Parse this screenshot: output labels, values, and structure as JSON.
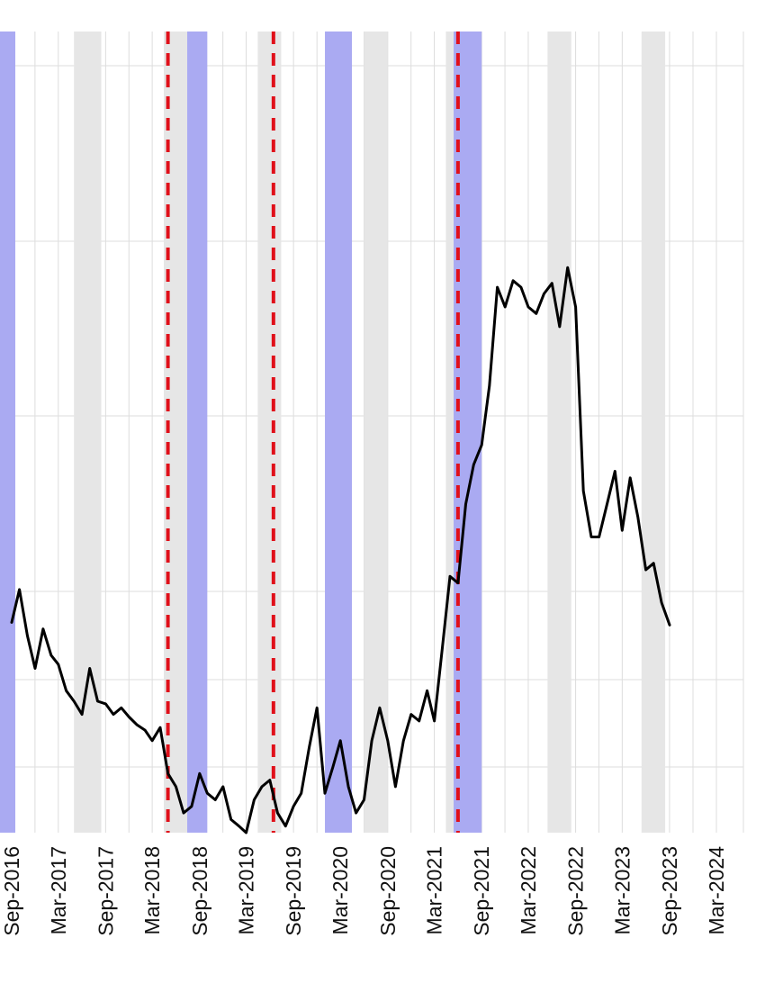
{
  "chart_data": {
    "type": "line",
    "title": "",
    "xlabel": "",
    "ylabel": "",
    "x_range": [
      "2016-09-01",
      "2024-03-01"
    ],
    "grid": true,
    "legend": "none",
    "x_ticks": [
      {
        "date": "2016-09-01",
        "label": "Sep-2016"
      },
      {
        "date": "2017-03-01",
        "label": "Mar-2017"
      },
      {
        "date": "2017-09-01",
        "label": "Sep-2017"
      },
      {
        "date": "2018-03-01",
        "label": "Mar-2018"
      },
      {
        "date": "2018-09-01",
        "label": "Sep-2018"
      },
      {
        "date": "2019-03-01",
        "label": "Mar-2019"
      },
      {
        "date": "2019-09-01",
        "label": "Sep-2019"
      },
      {
        "date": "2020-03-01",
        "label": "Mar-2020"
      },
      {
        "date": "2020-09-01",
        "label": "Sep-2020"
      },
      {
        "date": "2021-03-01",
        "label": "Mar-2021"
      },
      {
        "date": "2021-09-01",
        "label": "Sep-2021"
      },
      {
        "date": "2022-03-01",
        "label": "Mar-2022"
      },
      {
        "date": "2022-09-01",
        "label": "Sep-2022"
      },
      {
        "date": "2023-03-01",
        "label": "Mar-2023"
      },
      {
        "date": "2023-09-01",
        "label": "Sep-2023"
      },
      {
        "date": "2024-03-01",
        "label": "Mar-2024"
      }
    ],
    "shaded_periods_gray": [
      [
        "2017-05-01",
        "2017-08-15"
      ],
      [
        "2018-04-15",
        "2018-07-15"
      ],
      [
        "2019-04-15",
        "2019-07-15"
      ],
      [
        "2020-06-01",
        "2020-09-01"
      ],
      [
        "2021-04-15",
        "2021-05-15"
      ],
      [
        "2022-05-15",
        "2022-08-15"
      ],
      [
        "2023-05-15",
        "2023-08-15"
      ]
    ],
    "shaded_periods_blue": [
      [
        "2016-06-01",
        "2016-09-15"
      ],
      [
        "2018-07-15",
        "2018-10-01"
      ],
      [
        "2020-01-01",
        "2020-04-15"
      ],
      [
        "2021-05-15",
        "2021-09-01"
      ]
    ],
    "event_lines": [
      "2018-05-01",
      "2019-06-15",
      "2021-06-01"
    ],
    "colors": {
      "series": "#000000",
      "gray_band": "#e6e6e6",
      "blue_band": "#aaaaf2",
      "event_line": "#e0101a",
      "grid": "#dddddd"
    },
    "series": [
      {
        "values": [
          [
            "2016-09-01",
            71.0
          ],
          [
            "2016-10-01",
            73.5
          ],
          [
            "2016-11-01",
            70.0
          ],
          [
            "2016-12-01",
            67.5
          ],
          [
            "2017-01-01",
            70.5
          ],
          [
            "2017-02-01",
            68.5
          ],
          [
            "2017-03-01",
            67.8
          ],
          [
            "2017-04-01",
            65.8
          ],
          [
            "2017-05-01",
            65.0
          ],
          [
            "2017-06-01",
            64.0
          ],
          [
            "2017-07-01",
            67.5
          ],
          [
            "2017-08-01",
            65.0
          ],
          [
            "2017-09-01",
            64.8
          ],
          [
            "2017-10-01",
            64.0
          ],
          [
            "2017-11-01",
            64.5
          ],
          [
            "2017-12-01",
            63.8
          ],
          [
            "2018-01-01",
            63.2
          ],
          [
            "2018-02-01",
            62.8
          ],
          [
            "2018-03-01",
            62.0
          ],
          [
            "2018-04-01",
            63.0
          ],
          [
            "2018-05-01",
            59.5
          ],
          [
            "2018-06-01",
            58.5
          ],
          [
            "2018-07-01",
            56.5
          ],
          [
            "2018-08-01",
            57.0
          ],
          [
            "2018-09-01",
            59.5
          ],
          [
            "2018-10-01",
            58.0
          ],
          [
            "2018-11-01",
            57.5
          ],
          [
            "2018-12-01",
            58.5
          ],
          [
            "2019-01-01",
            56.0
          ],
          [
            "2019-02-01",
            55.5
          ],
          [
            "2019-03-01",
            55.0
          ],
          [
            "2019-04-01",
            57.5
          ],
          [
            "2019-05-01",
            58.5
          ],
          [
            "2019-06-01",
            59.0
          ],
          [
            "2019-07-01",
            56.5
          ],
          [
            "2019-08-01",
            55.5
          ],
          [
            "2019-09-01",
            57.0
          ],
          [
            "2019-10-01",
            58.0
          ],
          [
            "2019-11-01",
            61.5
          ],
          [
            "2019-12-01",
            64.5
          ],
          [
            "2020-01-01",
            58.0
          ],
          [
            "2020-02-01",
            60.0
          ],
          [
            "2020-03-01",
            62.0
          ],
          [
            "2020-04-01",
            58.5
          ],
          [
            "2020-05-01",
            56.5
          ],
          [
            "2020-06-01",
            57.5
          ],
          [
            "2020-07-01",
            62.0
          ],
          [
            "2020-08-01",
            64.5
          ],
          [
            "2020-09-01",
            62.0
          ],
          [
            "2020-10-01",
            58.5
          ],
          [
            "2020-11-01",
            62.0
          ],
          [
            "2020-12-01",
            64.0
          ],
          [
            "2021-01-01",
            63.5
          ],
          [
            "2021-02-01",
            65.8
          ],
          [
            "2021-03-01",
            63.5
          ],
          [
            "2021-04-01",
            69.0
          ],
          [
            "2021-05-01",
            74.5
          ],
          [
            "2021-06-01",
            74.0
          ],
          [
            "2021-07-01",
            80.0
          ],
          [
            "2021-08-01",
            83.0
          ],
          [
            "2021-09-01",
            84.5
          ],
          [
            "2021-10-01",
            89.0
          ],
          [
            "2021-11-01",
            96.5
          ],
          [
            "2021-12-01",
            95.0
          ],
          [
            "2022-01-01",
            97.0
          ],
          [
            "2022-02-01",
            96.5
          ],
          [
            "2022-03-01",
            95.0
          ],
          [
            "2022-04-01",
            94.5
          ],
          [
            "2022-05-01",
            96.0
          ],
          [
            "2022-06-01",
            96.8
          ],
          [
            "2022-07-01",
            93.5
          ],
          [
            "2022-08-01",
            98.0
          ],
          [
            "2022-09-01",
            95.0
          ],
          [
            "2022-10-01",
            81.0
          ],
          [
            "2022-11-01",
            77.5
          ],
          [
            "2022-12-01",
            77.5
          ],
          [
            "2023-01-01",
            80.0
          ],
          [
            "2023-02-01",
            82.5
          ],
          [
            "2023-03-01",
            78.0
          ],
          [
            "2023-04-01",
            82.0
          ],
          [
            "2023-05-01",
            79.0
          ],
          [
            "2023-06-01",
            75.0
          ],
          [
            "2023-07-01",
            75.5
          ],
          [
            "2023-08-01",
            72.5
          ],
          [
            "2023-09-01",
            70.8
          ]
        ]
      }
    ]
  }
}
